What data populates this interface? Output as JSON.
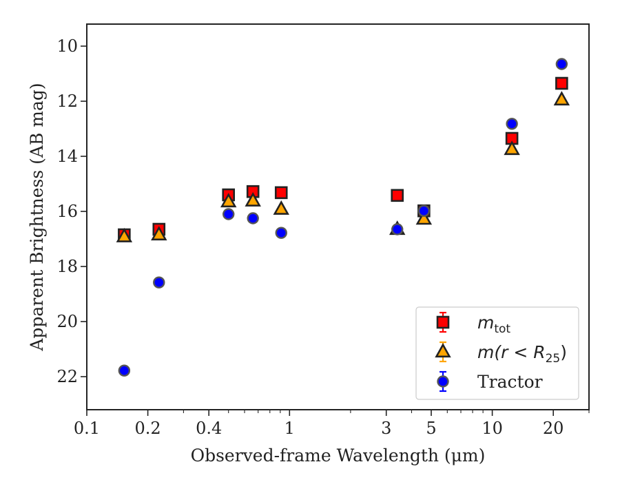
{
  "chart_data": {
    "type": "scatter",
    "x_scale": "log",
    "y_inverted": true,
    "xlabel": "Observed-frame Wavelength (μm)",
    "ylabel": "Apparent Brightness (AB mag)",
    "xlim": [
      0.1,
      30
    ],
    "ylim": [
      23.2,
      9.2
    ],
    "x_ticks": [
      {
        "value": 0.1,
        "label": "0.1"
      },
      {
        "value": 0.2,
        "label": "0.2"
      },
      {
        "value": 0.4,
        "label": "0.4"
      },
      {
        "value": 1,
        "label": "1"
      },
      {
        "value": 3,
        "label": "3"
      },
      {
        "value": 5,
        "label": "5"
      },
      {
        "value": 10,
        "label": "10"
      },
      {
        "value": 20,
        "label": "20"
      }
    ],
    "y_ticks": [
      10,
      12,
      14,
      16,
      18,
      20,
      22
    ],
    "grid": false,
    "legend_position": "bottom-right",
    "series": [
      {
        "name": "m_tot",
        "legend_label": "m",
        "legend_sub": "tot",
        "marker": "square",
        "color": "#ff0000",
        "points": [
          {
            "x": 0.153,
            "y": 16.85
          },
          {
            "x": 0.227,
            "y": 16.65
          },
          {
            "x": 0.5,
            "y": 15.4
          },
          {
            "x": 0.66,
            "y": 15.28
          },
          {
            "x": 0.91,
            "y": 15.32
          },
          {
            "x": 3.4,
            "y": 15.42
          },
          {
            "x": 4.6,
            "y": 15.98
          },
          {
            "x": 12.5,
            "y": 13.35
          },
          {
            "x": 22.0,
            "y": 11.35
          }
        ]
      },
      {
        "name": "m(r < R_25)",
        "legend_label": "m(r < R",
        "legend_sub": "25",
        "legend_tail": ")",
        "marker": "triangle",
        "color": "#ffa500",
        "points": [
          {
            "x": 0.153,
            "y": 16.92
          },
          {
            "x": 0.227,
            "y": 16.85
          },
          {
            "x": 0.5,
            "y": 15.65
          },
          {
            "x": 0.66,
            "y": 15.62
          },
          {
            "x": 0.91,
            "y": 15.92
          },
          {
            "x": 3.4,
            "y": 16.65
          },
          {
            "x": 4.6,
            "y": 16.28
          },
          {
            "x": 12.5,
            "y": 13.75
          },
          {
            "x": 22.0,
            "y": 11.95
          }
        ]
      },
      {
        "name": "Tractor",
        "legend_label": "Tractor",
        "marker": "circle",
        "color": "#0000ff",
        "points": [
          {
            "x": 0.153,
            "y": 21.78
          },
          {
            "x": 0.227,
            "y": 18.58
          },
          {
            "x": 0.5,
            "y": 16.1
          },
          {
            "x": 0.66,
            "y": 16.25
          },
          {
            "x": 0.91,
            "y": 16.78
          },
          {
            "x": 3.4,
            "y": 16.65
          },
          {
            "x": 4.6,
            "y": 15.98
          },
          {
            "x": 12.5,
            "y": 12.82
          },
          {
            "x": 22.0,
            "y": 10.65
          }
        ]
      }
    ]
  }
}
